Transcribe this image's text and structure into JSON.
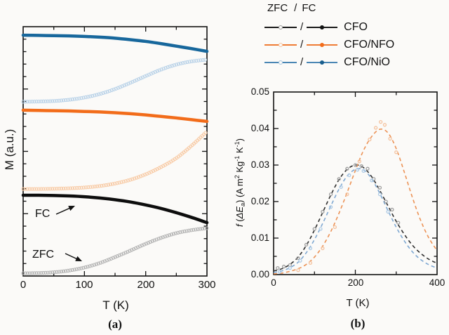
{
  "figure": {
    "panel_a": {
      "ylabel": "M (a.u.)",
      "xlabel": "T (K)",
      "caption": "(a)",
      "x_tick_labels": [
        "0",
        "100",
        "200",
        "300"
      ],
      "fc_label": "FC",
      "zfc_label": "ZFC"
    },
    "panel_b": {
      "ylabel": {
        "f": "f",
        "open": " (",
        "dE": "ΔE",
        "sub_a": "a",
        "mid": ") (A m",
        "sup_2": "2",
        "kg": " Kg",
        "sup_m1": "-1",
        "k": " K",
        "sup_m1b": "-1",
        "close": ")"
      },
      "xlabel": "T (K)",
      "caption": "(b)",
      "x_tick_labels": [
        "0",
        "200",
        "400"
      ],
      "y_tick_labels": [
        "0.05",
        "0.04",
        "0.03",
        "0.02",
        "0.01",
        "0.00"
      ]
    },
    "legend": {
      "header": {
        "zfc": "ZFC",
        "sep": "/",
        "fc": "FC"
      },
      "rows": [
        {
          "label": "CFO",
          "sep": "/",
          "line_color": "#1a1a1a",
          "circle_color": "#9a9a9a",
          "dot_color": "#111111"
        },
        {
          "label": "CFO/NFO",
          "sep": "/",
          "line_color": "#ef7c35",
          "circle_color": "#f6c09a",
          "dot_color": "#f26c1a"
        },
        {
          "label": "CFO/NiO",
          "sep": "/",
          "line_color": "#4a86b4",
          "circle_color": "#a5c6e0",
          "dot_color": "#175d8d"
        }
      ]
    },
    "colors": {
      "cfo_black": "#0d0d0d",
      "cfo_zfc_gray": "#b3b3b3",
      "nfo_orange": "#f26c1a",
      "nfo_zfc_light": "#f8cba6",
      "nio_blue": "#17679c",
      "nio_zfc_light": "#b9d2e8",
      "fit_black": "#2e2e2e",
      "fit_blue": "#7fa8d2",
      "fit_orange": "#ec9255",
      "axis": "#111111"
    }
  },
  "chart_data": [
    {
      "panel": "a",
      "type": "line",
      "title": "ZFC/FC magnetization vs temperature",
      "xlabel": "T (K)",
      "ylabel": "M (a.u.)",
      "xlim": [
        0,
        300
      ],
      "ylim": [
        0,
        1
      ],
      "grid": false,
      "x": [
        0,
        25,
        50,
        75,
        100,
        125,
        150,
        175,
        200,
        225,
        250,
        275,
        300
      ],
      "series": [
        {
          "name": "CFO/NiO FC",
          "branch": "FC",
          "style": "solid",
          "color": "#17679c",
          "values": [
            0.966,
            0.965,
            0.964,
            0.963,
            0.961,
            0.958,
            0.954,
            0.948,
            0.941,
            0.932,
            0.922,
            0.912,
            0.901
          ]
        },
        {
          "name": "CFO/NiO ZFC",
          "branch": "ZFC",
          "style": "open-circles",
          "color": "#b9d2e8",
          "values": [
            0.699,
            0.7,
            0.702,
            0.707,
            0.716,
            0.73,
            0.75,
            0.775,
            0.802,
            0.828,
            0.848,
            0.861,
            0.868
          ]
        },
        {
          "name": "CFO/NFO FC",
          "branch": "FC",
          "style": "solid",
          "color": "#f26c1a",
          "values": [
            0.665,
            0.664,
            0.663,
            0.662,
            0.66,
            0.658,
            0.655,
            0.651,
            0.646,
            0.64,
            0.634,
            0.627,
            0.62
          ]
        },
        {
          "name": "CFO/NFO ZFC",
          "branch": "ZFC",
          "style": "open-circles",
          "color": "#f8cba6",
          "values": [
            0.349,
            0.349,
            0.35,
            0.352,
            0.355,
            0.361,
            0.371,
            0.386,
            0.408,
            0.437,
            0.473,
            0.523,
            0.58
          ]
        },
        {
          "name": "CFO FC",
          "branch": "FC",
          "style": "solid",
          "color": "#0d0d0d",
          "values": [
            0.324,
            0.324,
            0.323,
            0.321,
            0.318,
            0.313,
            0.306,
            0.297,
            0.285,
            0.271,
            0.254,
            0.235,
            0.214
          ]
        },
        {
          "name": "CFO ZFC",
          "branch": "ZFC",
          "style": "open-circles",
          "color": "#b3b3b3",
          "values": [
            0.011,
            0.012,
            0.015,
            0.022,
            0.034,
            0.052,
            0.076,
            0.102,
            0.129,
            0.153,
            0.172,
            0.184,
            0.192
          ]
        }
      ]
    },
    {
      "panel": "b",
      "type": "line+scatter",
      "title": "Anisotropy energy barrier distribution",
      "xlabel": "T (K)",
      "ylabel": "f (ΔEa) (A m2 Kg-1 K-1)",
      "xlim": [
        0,
        400
      ],
      "ylim": [
        0,
        0.05
      ],
      "grid": false,
      "x": [
        0,
        20,
        40,
        60,
        80,
        100,
        120,
        140,
        160,
        180,
        200,
        220,
        240,
        260,
        280,
        300,
        320,
        340,
        360,
        380,
        400
      ],
      "series": [
        {
          "name": "CFO fit",
          "style": "dashed",
          "color": "#2e2e2e",
          "values": [
            0.001,
            0.0016,
            0.0028,
            0.0048,
            0.008,
            0.0122,
            0.017,
            0.0218,
            0.026,
            0.0288,
            0.03,
            0.0293,
            0.0268,
            0.023,
            0.0188,
            0.0146,
            0.011,
            0.008,
            0.0058,
            0.0042,
            0.0031
          ]
        },
        {
          "name": "CFO/NiO fit",
          "style": "dashed",
          "color": "#7fa8d2",
          "values": [
            0.0006,
            0.001,
            0.0019,
            0.0034,
            0.006,
            0.0096,
            0.014,
            0.0188,
            0.0234,
            0.027,
            0.0288,
            0.0287,
            0.0262,
            0.0222,
            0.0175,
            0.013,
            0.0092,
            0.0062,
            0.0041,
            0.0027,
            0.0018
          ]
        },
        {
          "name": "CFO/NFO fit",
          "style": "dashed",
          "color": "#ec9255",
          "values": [
            0.0002,
            0.0004,
            0.0009,
            0.0016,
            0.0028,
            0.0048,
            0.0078,
            0.0118,
            0.0168,
            0.0225,
            0.0285,
            0.034,
            0.0378,
            0.0398,
            0.0388,
            0.0345,
            0.028,
            0.021,
            0.0148,
            0.01,
            0.0066
          ]
        },
        {
          "name": "CFO data",
          "style": "scatter",
          "color": "#9f9f9f",
          "points": [
            [
              10,
              0.0018
            ],
            [
              25,
              0.0022
            ],
            [
              40,
              0.0026
            ],
            [
              60,
              0.0045
            ],
            [
              80,
              0.0082
            ],
            [
              100,
              0.0125
            ],
            [
              120,
              0.0172
            ],
            [
              140,
              0.022
            ],
            [
              160,
              0.0262
            ],
            [
              180,
              0.029
            ],
            [
              200,
              0.03
            ],
            [
              215,
              0.0297
            ],
            [
              230,
              0.029
            ],
            [
              245,
              0.0262
            ],
            [
              260,
              0.0238
            ],
            [
              275,
              0.02
            ],
            [
              290,
              0.0178
            ],
            [
              305,
              0.0142
            ]
          ]
        },
        {
          "name": "CFO/NiO data",
          "style": "scatter",
          "color": "#aecbe6",
          "points": [
            [
              15,
              0.0008
            ],
            [
              40,
              0.0018
            ],
            [
              65,
              0.0038
            ],
            [
              90,
              0.0072
            ],
            [
              115,
              0.0125
            ],
            [
              140,
              0.0185
            ],
            [
              165,
              0.024
            ],
            [
              185,
              0.0272
            ],
            [
              205,
              0.0287
            ],
            [
              220,
              0.0284
            ],
            [
              240,
              0.0258
            ],
            [
              260,
              0.022
            ],
            [
              280,
              0.0172
            ]
          ]
        },
        {
          "name": "CFO/NFO data",
          "style": "scatter",
          "color": "#f4c3a0",
          "points": [
            [
              60,
              0.0012
            ],
            [
              90,
              0.0032
            ],
            [
              120,
              0.0072
            ],
            [
              150,
              0.013
            ],
            [
              180,
              0.022
            ],
            [
              210,
              0.031
            ],
            [
              235,
              0.037
            ],
            [
              250,
              0.0402
            ],
            [
              262,
              0.0418
            ],
            [
              272,
              0.041
            ],
            [
              285,
              0.0372
            ],
            [
              300,
              0.0335
            ]
          ]
        }
      ]
    }
  ]
}
